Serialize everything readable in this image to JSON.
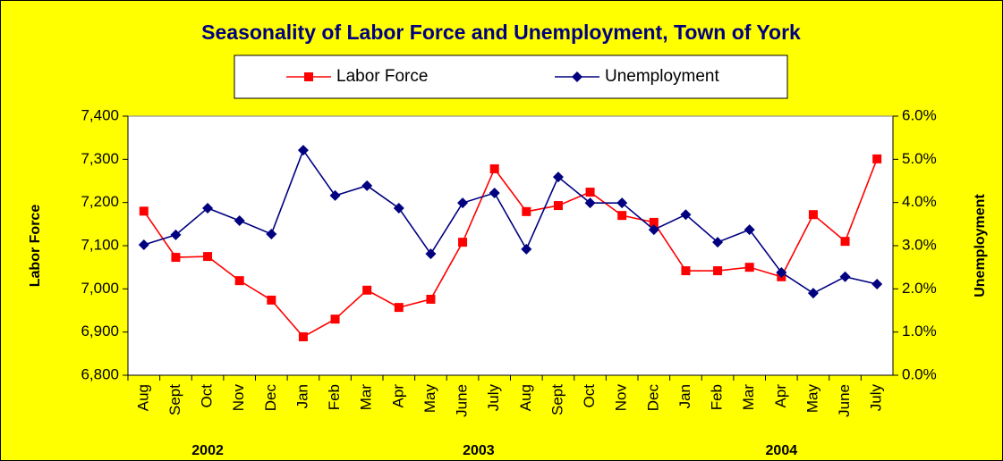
{
  "chart_data": {
    "type": "line",
    "title": "Seasonality of Labor Force and Unemployment, Town of York",
    "y_label": "Labor Force",
    "y2_label": "Unemployment",
    "categories": [
      "Aug",
      "Sept",
      "Oct",
      "Nov",
      "Dec",
      "Jan",
      "Feb",
      "Mar",
      "Apr",
      "May",
      "June",
      "July",
      "Aug",
      "Sept",
      "Oct",
      "Nov",
      "Dec",
      "Jan",
      "Feb",
      "Mar",
      "Apr",
      "May",
      "June",
      "July"
    ],
    "groups": [
      {
        "label": "2002",
        "count": 5
      },
      {
        "label": "2003",
        "count": 12
      },
      {
        "label": "2004",
        "count": 7
      }
    ],
    "series": [
      {
        "name": "Labor Force",
        "color": "#ff0000",
        "marker": "square",
        "values": [
          7180,
          7073,
          7075,
          7019,
          6974,
          6889,
          6930,
          6997,
          6957,
          6976,
          7108,
          7278,
          7179,
          7193,
          7224,
          7170,
          7154,
          7042,
          7042,
          7050,
          7028,
          7172,
          7110,
          7301
        ]
      },
      {
        "name": "Unemployment",
        "color": "#000080",
        "marker": "diamond",
        "axis": "y2",
        "values": [
          3.02,
          3.25,
          3.87,
          3.58,
          3.27,
          5.21,
          4.16,
          4.39,
          3.87,
          2.81,
          3.99,
          4.22,
          2.92,
          4.59,
          3.99,
          3.99,
          3.37,
          3.72,
          3.08,
          3.37,
          2.38,
          1.9,
          2.28,
          2.11
        ]
      }
    ],
    "ylim": [
      6800,
      7400
    ],
    "yticks": [
      {
        "value": 6800,
        "label": "6,800"
      },
      {
        "value": 6900,
        "label": "6,900"
      },
      {
        "value": 7000,
        "label": "7,000"
      },
      {
        "value": 7100,
        "label": "7,100"
      },
      {
        "value": 7200,
        "label": "7,200"
      },
      {
        "value": 7300,
        "label": "7,300"
      },
      {
        "value": 7400,
        "label": "7,400"
      }
    ],
    "y2lim": [
      0,
      6
    ],
    "y2ticks": [
      {
        "value": 0,
        "label": "0.0%"
      },
      {
        "value": 1,
        "label": "1.0%"
      },
      {
        "value": 2,
        "label": "2.0%"
      },
      {
        "value": 3,
        "label": "3.0%"
      },
      {
        "value": 4,
        "label": "4.0%"
      },
      {
        "value": 5,
        "label": "5.0%"
      },
      {
        "value": 6,
        "label": "6.0%"
      }
    ],
    "legend": "top",
    "grid": false
  }
}
